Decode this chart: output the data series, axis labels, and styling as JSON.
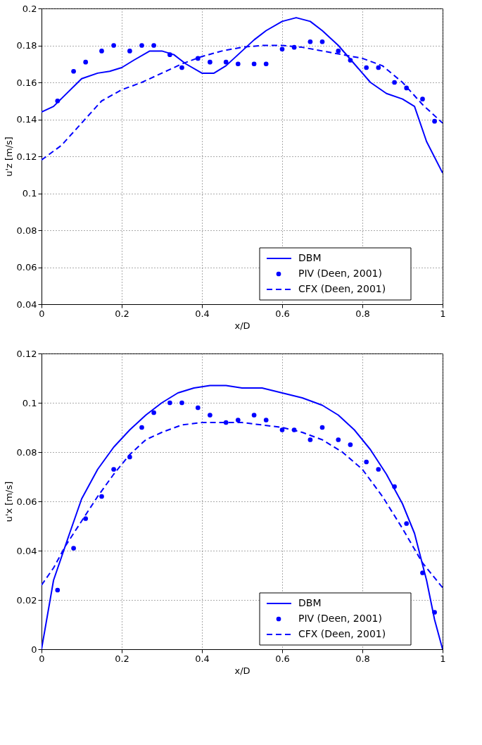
{
  "chart_data": [
    {
      "type": "line",
      "xlabel": "x/D",
      "ylabel": "u'z [m/s]",
      "xlim": [
        0,
        1
      ],
      "ylim": [
        0.04,
        0.2
      ],
      "xticks": [
        0,
        0.2,
        0.4,
        0.6,
        0.8,
        1
      ],
      "yticks": [
        0.04,
        0.06,
        0.08,
        0.1,
        0.12,
        0.14,
        0.16,
        0.18,
        0.2
      ],
      "grid": true,
      "legend": "bottom right",
      "series": [
        {
          "name": "DBM",
          "type": "line",
          "line_style": "solid",
          "color": "#0000ff",
          "x": [
            0,
            0.03,
            0.1,
            0.14,
            0.17,
            0.2,
            0.23,
            0.27,
            0.3,
            0.33,
            0.36,
            0.4,
            0.43,
            0.46,
            0.5,
            0.53,
            0.56,
            0.6,
            0.635,
            0.67,
            0.7,
            0.74,
            0.78,
            0.82,
            0.86,
            0.9,
            0.93,
            0.96,
            1.0
          ],
          "values": [
            0.144,
            0.147,
            0.162,
            0.165,
            0.166,
            0.168,
            0.172,
            0.177,
            0.177,
            0.175,
            0.17,
            0.165,
            0.165,
            0.169,
            0.177,
            0.183,
            0.188,
            0.193,
            0.195,
            0.193,
            0.188,
            0.18,
            0.17,
            0.16,
            0.154,
            0.151,
            0.147,
            0.128,
            0.111
          ]
        },
        {
          "name": "PIV (Deen, 2001)",
          "type": "scatter",
          "marker": "circle",
          "color": "#0000ff",
          "x": [
            0.04,
            0.08,
            0.11,
            0.15,
            0.18,
            0.22,
            0.25,
            0.28,
            0.32,
            0.35,
            0.39,
            0.42,
            0.46,
            0.49,
            0.53,
            0.56,
            0.6,
            0.63,
            0.67,
            0.7,
            0.74,
            0.77,
            0.81,
            0.84,
            0.88,
            0.91,
            0.95,
            0.98
          ],
          "values": [
            0.15,
            0.166,
            0.171,
            0.177,
            0.18,
            0.177,
            0.18,
            0.18,
            0.175,
            0.168,
            0.173,
            0.171,
            0.171,
            0.17,
            0.17,
            0.17,
            0.178,
            0.179,
            0.182,
            0.182,
            0.177,
            0.172,
            0.168,
            0.168,
            0.16,
            0.157,
            0.151,
            0.139
          ]
        },
        {
          "name": "CFX (Deen, 2001)",
          "type": "line",
          "line_style": "dashed",
          "color": "#0000ff",
          "x": [
            0,
            0.05,
            0.1,
            0.15,
            0.2,
            0.25,
            0.3,
            0.35,
            0.4,
            0.45,
            0.5,
            0.55,
            0.6,
            0.65,
            0.7,
            0.75,
            0.8,
            0.85,
            0.9,
            0.95,
            1.0
          ],
          "values": [
            0.118,
            0.126,
            0.138,
            0.15,
            0.156,
            0.16,
            0.165,
            0.17,
            0.174,
            0.177,
            0.179,
            0.18,
            0.18,
            0.179,
            0.177,
            0.175,
            0.173,
            0.169,
            0.16,
            0.148,
            0.138
          ]
        }
      ]
    },
    {
      "type": "line",
      "xlabel": "x/D",
      "ylabel": "u'x [m/s]",
      "xlim": [
        0,
        1
      ],
      "ylim": [
        0,
        0.12
      ],
      "xticks": [
        0,
        0.2,
        0.4,
        0.6,
        0.8,
        1
      ],
      "yticks": [
        0,
        0.02,
        0.04,
        0.06,
        0.08,
        0.1,
        0.12
      ],
      "grid": true,
      "legend": "bottom right",
      "series": [
        {
          "name": "DBM",
          "type": "line",
          "line_style": "solid",
          "color": "#0000ff",
          "x": [
            0,
            0.03,
            0.07,
            0.1,
            0.14,
            0.18,
            0.22,
            0.26,
            0.3,
            0.34,
            0.38,
            0.42,
            0.46,
            0.5,
            0.55,
            0.6,
            0.65,
            0.7,
            0.74,
            0.78,
            0.82,
            0.86,
            0.9,
            0.93,
            0.96,
            0.98,
            1.0
          ],
          "values": [
            0,
            0.028,
            0.047,
            0.061,
            0.073,
            0.082,
            0.089,
            0.095,
            0.1,
            0.104,
            0.106,
            0.107,
            0.107,
            0.106,
            0.106,
            0.104,
            0.102,
            0.099,
            0.095,
            0.089,
            0.081,
            0.071,
            0.059,
            0.047,
            0.028,
            0.012,
            0
          ]
        },
        {
          "name": "PIV (Deen, 2001)",
          "type": "scatter",
          "marker": "circle",
          "color": "#0000ff",
          "x": [
            0.04,
            0.08,
            0.11,
            0.15,
            0.18,
            0.22,
            0.25,
            0.28,
            0.32,
            0.35,
            0.39,
            0.42,
            0.46,
            0.49,
            0.53,
            0.56,
            0.6,
            0.63,
            0.67,
            0.7,
            0.74,
            0.77,
            0.81,
            0.84,
            0.88,
            0.91,
            0.95,
            0.98
          ],
          "values": [
            0.024,
            0.041,
            0.053,
            0.062,
            0.073,
            0.078,
            0.09,
            0.096,
            0.1,
            0.1,
            0.098,
            0.095,
            0.092,
            0.093,
            0.095,
            0.093,
            0.089,
            0.089,
            0.085,
            0.09,
            0.085,
            0.083,
            0.076,
            0.073,
            0.066,
            0.051,
            0.031,
            0.015
          ]
        },
        {
          "name": "CFX (Deen, 2001)",
          "type": "line",
          "line_style": "dashed",
          "color": "#0000ff",
          "x": [
            0,
            0.03,
            0.06,
            0.1,
            0.14,
            0.18,
            0.22,
            0.26,
            0.3,
            0.35,
            0.4,
            0.45,
            0.5,
            0.55,
            0.6,
            0.65,
            0.7,
            0.75,
            0.8,
            0.85,
            0.9,
            0.95,
            1.0
          ],
          "values": [
            0.026,
            0.033,
            0.042,
            0.052,
            0.062,
            0.071,
            0.079,
            0.085,
            0.088,
            0.091,
            0.092,
            0.092,
            0.092,
            0.091,
            0.09,
            0.088,
            0.085,
            0.08,
            0.073,
            0.062,
            0.049,
            0.035,
            0.025
          ]
        }
      ]
    }
  ]
}
